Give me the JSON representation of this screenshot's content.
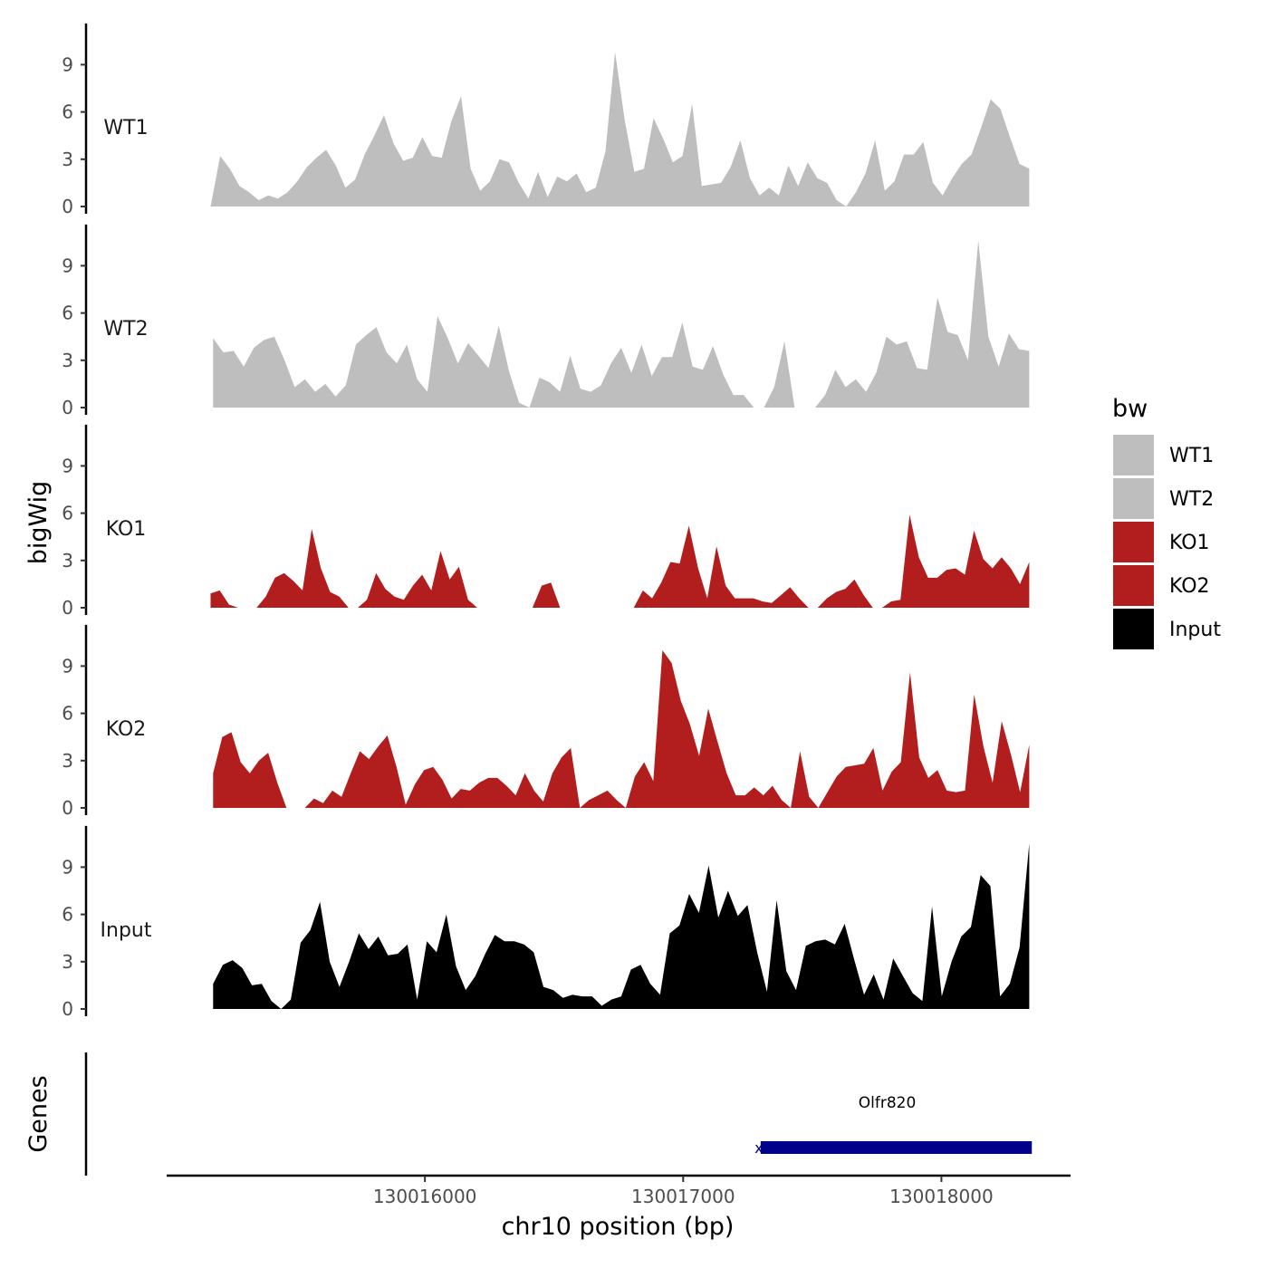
{
  "chart_data": {
    "type": "area",
    "y_axis_title": "bigWig",
    "x_axis_title": "chr10 position (bp)",
    "gene_axis_title": "Genes",
    "xlim": [
      130015000,
      130018500
    ],
    "x_ticks": [
      130016000,
      130017000,
      130018000
    ],
    "x_tick_labels": [
      "130016000",
      "130017000",
      "130018000"
    ],
    "ylim": [
      0,
      11.5
    ],
    "y_ticks": [
      0,
      3,
      6,
      9
    ],
    "y_tick_labels": [
      "0",
      "3",
      "6",
      "9"
    ],
    "legend": {
      "title": "bw",
      "entries": [
        {
          "label": "WT1",
          "color": "#bebebe"
        },
        {
          "label": "WT2",
          "color": "#bebebe"
        },
        {
          "label": "KO1",
          "color": "#b21e1e"
        },
        {
          "label": "KO2",
          "color": "#b21e1e"
        },
        {
          "label": "Input",
          "color": "#000000"
        }
      ]
    },
    "tracks": [
      {
        "name": "WT1",
        "color": "#bebebe",
        "x_start": 130015170,
        "x_end": 130018340,
        "step": 40,
        "values": [
          0,
          3.2,
          2.4,
          1.3,
          0.9,
          0.4,
          0.7,
          0.5,
          0.9,
          1.6,
          2.5,
          3.1,
          3.6,
          2.6,
          1.2,
          1.7,
          3.3,
          4.5,
          5.8,
          4,
          2.9,
          3.1,
          4.4,
          3.2,
          3.1,
          5.4,
          7,
          2.4,
          1,
          1.6,
          3,
          2.8,
          1.5,
          0.5,
          2.2,
          0.6,
          1.9,
          1.6,
          2.1,
          0.9,
          1.2,
          3.5,
          9.8,
          5.5,
          2.2,
          2.4,
          5.6,
          4.3,
          2.8,
          3.2,
          6.5,
          1.3,
          1.4,
          1.5,
          2.5,
          4.2,
          1.8,
          0.7,
          1.2,
          0.7,
          2.6,
          1.3,
          2.8,
          1.8,
          1.5,
          0.4,
          0,
          0.9,
          2.1,
          4.2,
          1,
          1.6,
          3.3,
          3.3,
          4.1,
          1.5,
          0.7,
          1.8,
          2.7,
          3.3,
          5,
          6.8,
          6.2,
          4.4,
          2.7,
          2.4
        ]
      },
      {
        "name": "WT2",
        "color": "#bebebe",
        "x_start": 130015180,
        "x_end": 130018340,
        "step": 40,
        "values": [
          4.4,
          3.5,
          3.6,
          2.6,
          3.8,
          4.3,
          4.5,
          3,
          1.3,
          1.8,
          1,
          1.5,
          0.7,
          1.4,
          4,
          4.6,
          5.1,
          3.5,
          2.8,
          4,
          1.8,
          1,
          5.8,
          4.4,
          2.8,
          4.1,
          3.3,
          2.5,
          5.2,
          2.3,
          0.3,
          0,
          1.9,
          1.6,
          1,
          3.3,
          1.2,
          1,
          1.4,
          2.8,
          3.8,
          2.2,
          4,
          2,
          3.2,
          3.2,
          5.4,
          2.6,
          2.4,
          3.9,
          2.1,
          0.8,
          0.8,
          0,
          0,
          1.3,
          4.2,
          0,
          0,
          0,
          0.8,
          2.4,
          1.3,
          1.8,
          1,
          2.2,
          4.5,
          4,
          4.2,
          2.5,
          2.4,
          7,
          4.8,
          4.6,
          3,
          10.6,
          4.5,
          2.6,
          4.7,
          3.7,
          3.6
        ]
      },
      {
        "name": "KO1",
        "color": "#b21e1e",
        "x_start": 130015170,
        "x_end": 130018340,
        "step": 40,
        "values": [
          0.9,
          1.1,
          0.2,
          0,
          0,
          0,
          0.7,
          1.9,
          2.2,
          1.7,
          1.1,
          5,
          2.5,
          1,
          0.7,
          0,
          0,
          0.5,
          2.2,
          1.2,
          0.7,
          0.5,
          1.4,
          2.1,
          1.1,
          3.6,
          1.8,
          2.6,
          0.5,
          0,
          0,
          0,
          0,
          0,
          0,
          0,
          1.4,
          1.6,
          0,
          0,
          0,
          0,
          0,
          0,
          0,
          0,
          0,
          1.1,
          0.6,
          1.6,
          2.9,
          2.8,
          5.2,
          2.5,
          0.6,
          3.9,
          1.4,
          0.6,
          0.6,
          0.6,
          0.4,
          0.3,
          0.8,
          1.3,
          0.6,
          0,
          0,
          0.6,
          1,
          1.2,
          1.8,
          0.8,
          0,
          0,
          0.4,
          0.5,
          5.9,
          3.2,
          1.9,
          1.9,
          2.4,
          2.5,
          2.1,
          4.9,
          3.1,
          2.5,
          3.2,
          2.5,
          1.5,
          2.9
        ]
      },
      {
        "name": "KO2",
        "color": "#b21e1e",
        "x_start": 130015180,
        "x_end": 130018340,
        "step": 40,
        "values": [
          2.2,
          4.5,
          4.8,
          2.9,
          2.2,
          3,
          3.5,
          1.6,
          0,
          0,
          0,
          0.6,
          0.3,
          1.1,
          0.7,
          2.2,
          3.6,
          3.1,
          3.9,
          4.6,
          2.6,
          0.2,
          1.5,
          2.4,
          2.6,
          1.8,
          0.6,
          1.2,
          1.1,
          1.6,
          1.9,
          1.9,
          1.4,
          0.8,
          2.2,
          1.1,
          0.4,
          2.2,
          3.2,
          3.8,
          0,
          0.5,
          0.8,
          1.1,
          0.5,
          0,
          2,
          2.9,
          1.7,
          10,
          9.2,
          6.8,
          5.3,
          3.3,
          6.3,
          4.2,
          2.2,
          0.8,
          0.8,
          1.3,
          0.8,
          1.4,
          0.5,
          0,
          3.6,
          0.7,
          0,
          1,
          2,
          2.6,
          2.7,
          2.8,
          3.8,
          1.1,
          2.3,
          2.9,
          8.6,
          3.2,
          1.9,
          2.4,
          1.1,
          1,
          1.1,
          7.2,
          3.9,
          1.6,
          5.5,
          3.4,
          1,
          4
        ]
      },
      {
        "name": "Input",
        "color": "#000000",
        "x_start": 130015180,
        "x_end": 130018340,
        "step": 40,
        "values": [
          1.6,
          2.8,
          3.1,
          2.6,
          1.5,
          1.6,
          0.5,
          0,
          0.6,
          4.2,
          5,
          6.8,
          3,
          1.4,
          3,
          4.8,
          3.8,
          4.6,
          3.4,
          3.5,
          4.1,
          0.6,
          4.3,
          3.6,
          6,
          2.7,
          1.2,
          2.1,
          3.5,
          4.7,
          4.3,
          4.3,
          4.1,
          3.6,
          1.4,
          1.2,
          0.7,
          0.9,
          0.8,
          0.8,
          0.2,
          0.6,
          0.8,
          2.5,
          2.8,
          1.6,
          0.9,
          4.8,
          5.3,
          7.3,
          6.1,
          9.1,
          5.8,
          7.5,
          5.9,
          6.6,
          3.6,
          1.1,
          6.9,
          2.4,
          1.2,
          4,
          4.3,
          4.4,
          4.1,
          5.4,
          3.1,
          0.9,
          2.2,
          0.6,
          3.2,
          2.1,
          1,
          0.5,
          6.5,
          0.8,
          3,
          4.6,
          5.2,
          8.5,
          7.8,
          0.8,
          1.6,
          3.9,
          10.5
        ]
      }
    ],
    "genes": [
      {
        "name": "Olfr820",
        "start": 130017300,
        "end": 130018350,
        "color": "#00008b",
        "strand_marker": "x"
      }
    ]
  }
}
